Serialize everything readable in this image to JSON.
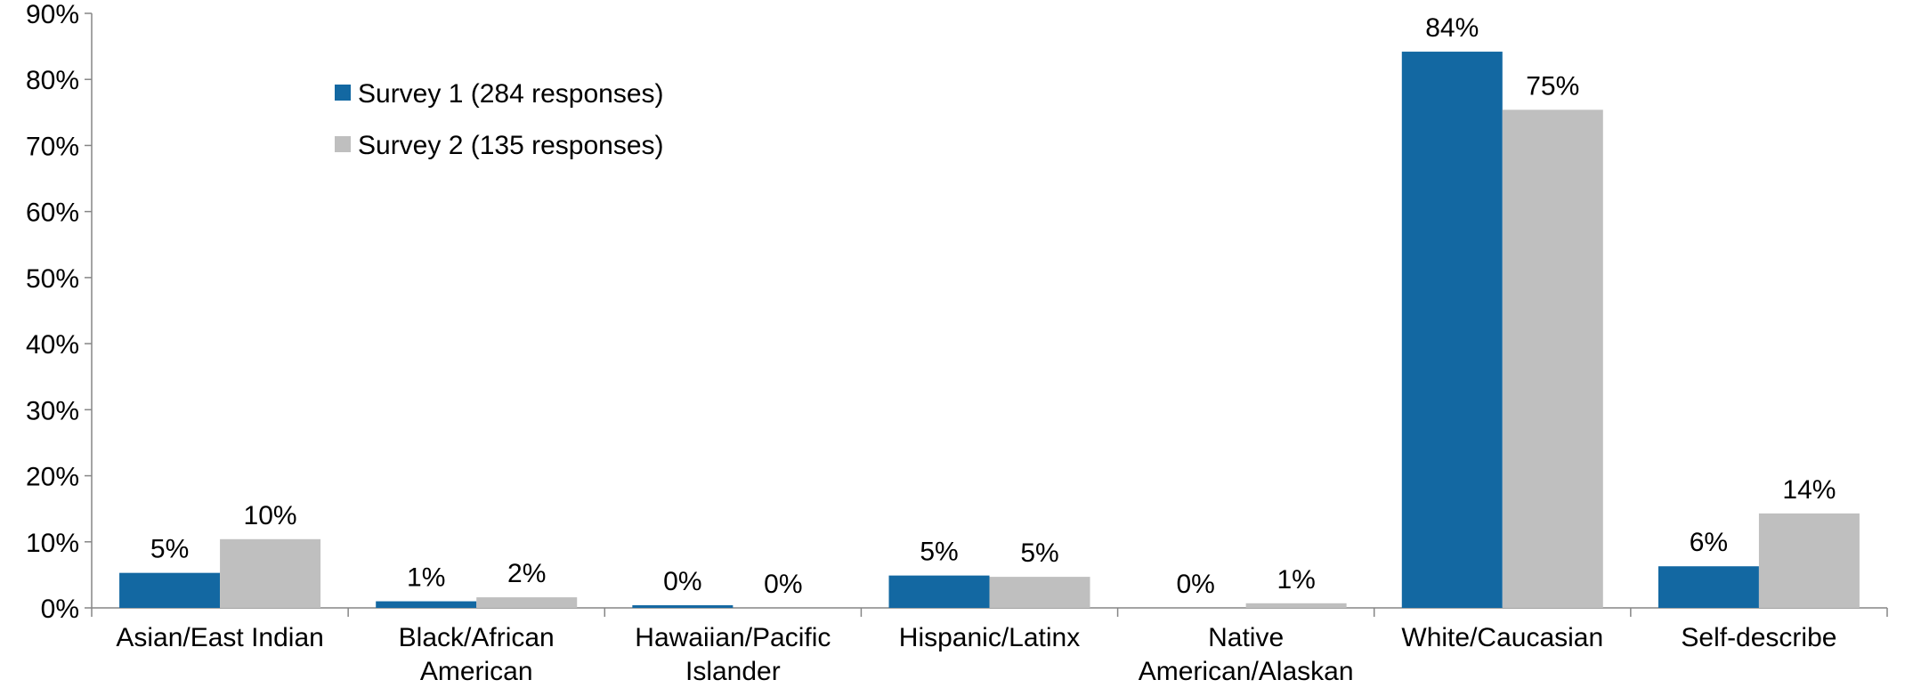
{
  "chart_data": {
    "type": "bar",
    "categories": [
      [
        "Asian/East Indian"
      ],
      [
        "Black/African",
        "American"
      ],
      [
        "Hawaiian/Pacific",
        "Islander"
      ],
      [
        "Hispanic/Latinx"
      ],
      [
        "Native",
        "American/Alaskan"
      ],
      [
        "White/Caucasian"
      ],
      [
        "Self-describe"
      ]
    ],
    "series": [
      {
        "name": "Survey 1 (284 responses)",
        "color": "#1368A2",
        "values": [
          5.3,
          1.0,
          0.4,
          4.9,
          0.0,
          84.2,
          6.3
        ],
        "labels": [
          "5%",
          "1%",
          "0%",
          "5%",
          "0%",
          "84%",
          "6%"
        ]
      },
      {
        "name": "Survey 2 (135 responses)",
        "color": "#BFBFBF",
        "values": [
          10.4,
          1.6,
          0.0,
          4.7,
          0.7,
          75.4,
          14.3
        ],
        "labels": [
          "10%",
          "2%",
          "0%",
          "5%",
          "1%",
          "75%",
          "14%"
        ]
      }
    ],
    "ylim": [
      0,
      90
    ],
    "ytick_step": 10,
    "ytick_labels": [
      "0%",
      "10%",
      "20%",
      "30%",
      "40%",
      "50%",
      "60%",
      "70%",
      "80%",
      "90%"
    ],
    "grid": false,
    "legend_position": "top-left"
  }
}
